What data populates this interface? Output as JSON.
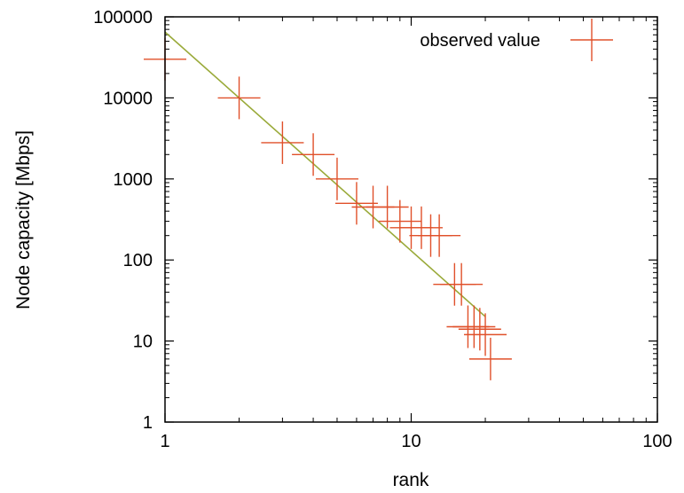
{
  "chart_data": {
    "type": "scatter",
    "xscale": "log",
    "yscale": "log",
    "xlim": [
      1,
      100
    ],
    "ylim": [
      1,
      100000
    ],
    "xlabel": "rank",
    "ylabel": "Node capacity [Mbps]",
    "x_ticks": [
      1,
      10,
      100
    ],
    "x_tick_labels": [
      "1",
      "10",
      "100"
    ],
    "y_ticks": [
      1,
      10,
      100,
      1000,
      10000,
      100000
    ],
    "y_tick_labels": [
      "1",
      "10",
      "100",
      "1000",
      "10000",
      "100000"
    ],
    "grid": false,
    "legend": {
      "position": "top-right"
    },
    "series": [
      {
        "name": "observed value",
        "marker": "plus",
        "color": "#e0502a",
        "points": [
          [
            1,
            30000
          ],
          [
            2,
            10000
          ],
          [
            3,
            2800
          ],
          [
            4,
            2000
          ],
          [
            5,
            1000
          ],
          [
            6,
            500
          ],
          [
            7,
            450
          ],
          [
            8,
            450
          ],
          [
            9,
            300
          ],
          [
            10,
            250
          ],
          [
            11,
            250
          ],
          [
            12,
            200
          ],
          [
            13,
            200
          ],
          [
            15,
            50
          ],
          [
            16,
            50
          ],
          [
            17,
            15
          ],
          [
            18,
            15
          ],
          [
            19,
            14
          ],
          [
            20,
            12
          ],
          [
            21,
            6
          ]
        ]
      }
    ],
    "fit_line": {
      "color": "#9aaa3a",
      "points": [
        [
          1,
          65000
        ],
        [
          20,
          20
        ]
      ]
    }
  }
}
